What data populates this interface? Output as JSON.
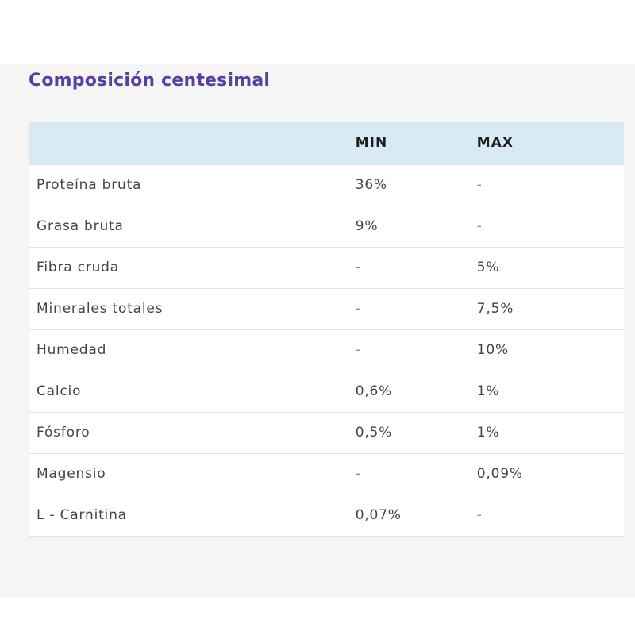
{
  "section": {
    "title": "Composición centesimal"
  },
  "table": {
    "headers": [
      "",
      "MIN",
      "MAX"
    ],
    "rows": [
      {
        "name": "Proteína bruta",
        "min": "36%",
        "max": "-"
      },
      {
        "name": "Grasa bruta",
        "min": "9%",
        "max": "-"
      },
      {
        "name": "Fibra cruda",
        "min": "-",
        "max": "5%"
      },
      {
        "name": "Minerales totales",
        "min": "-",
        "max": "7,5%"
      },
      {
        "name": "Humedad",
        "min": "-",
        "max": "10%"
      },
      {
        "name": "Calcio",
        "min": "0,6%",
        "max": "1%"
      },
      {
        "name": "Fósforo",
        "min": "0,5%",
        "max": "1%"
      },
      {
        "name": "Magensio",
        "min": "-",
        "max": "0,09%"
      },
      {
        "name": "L - Carnitina",
        "min": "0,07%",
        "max": "-"
      }
    ]
  },
  "colors": {
    "title": "#5a3fa0",
    "header_background": "#d8ebf4",
    "panel_background": "#f5f5f5"
  }
}
